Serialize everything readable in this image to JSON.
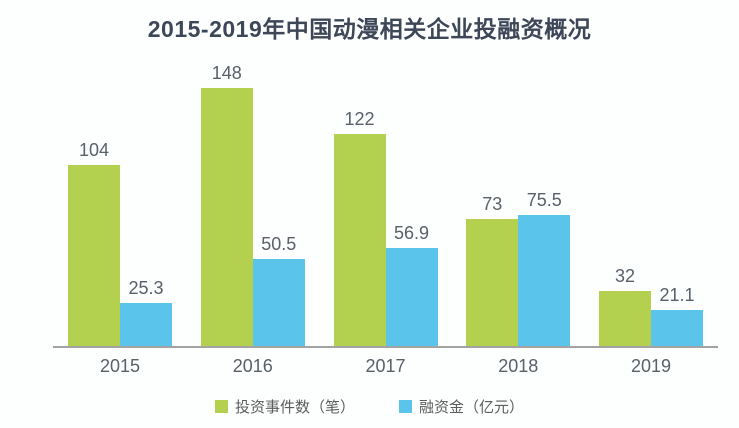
{
  "title": "2015-2019年中国动漫相关企业投融资概况",
  "chart_data": {
    "type": "bar",
    "title": "2015-2019年中国动漫相关企业投融资概况",
    "categories": [
      "2015",
      "2016",
      "2017",
      "2018",
      "2019"
    ],
    "series": [
      {
        "name": "投资事件数（笔）",
        "key": "investment-events",
        "color": "#b3d14f",
        "values": [
          104,
          148,
          122,
          73,
          32
        ]
      },
      {
        "name": "融资金（亿元）",
        "key": "funding-amount",
        "color": "#5bc4ea",
        "values": [
          25.3,
          50.5,
          56.9,
          75.5,
          21.1
        ]
      }
    ],
    "xlabel": "",
    "ylabel": "",
    "ylim": [
      0,
      170
    ],
    "grid": false,
    "y_axis_visible": false,
    "value_labels": true,
    "legend_position": "bottom",
    "colors": {
      "title_text": "#3d4757",
      "label_text": "#596069",
      "legend_text": "#5c5c5c",
      "axis_line": "#a3a3a3",
      "background": "#fdfefe"
    }
  }
}
